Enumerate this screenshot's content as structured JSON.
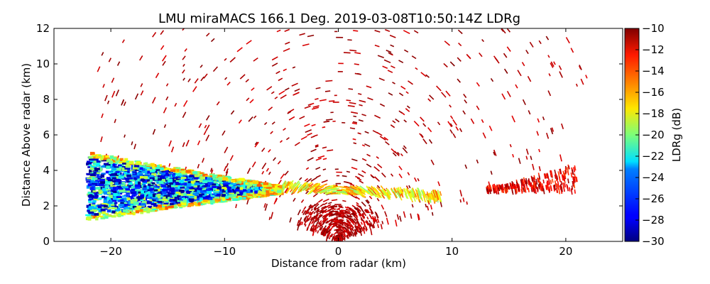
{
  "chart_data": {
    "type": "heatmap",
    "title": "LMU miraMACS 166.1 Deg. 2019-03-08T10:50:14Z  LDRg",
    "xlabel": "Distance from radar (km)",
    "ylabel": "Distance Above radar  (km)",
    "xlim": [
      -25,
      25
    ],
    "ylim": [
      0,
      12
    ],
    "xticks": [
      "−20",
      "−10",
      "0",
      "10",
      "20"
    ],
    "yticks": [
      "0",
      "2",
      "4",
      "6",
      "8",
      "10",
      "12"
    ],
    "colorbar": {
      "label": "LDRg (dB)",
      "range": [
        -30,
        -10
      ],
      "ticks": [
        "−10",
        "−12",
        "−14",
        "−16",
        "−18",
        "−20",
        "−22",
        "−24",
        "−26",
        "−28",
        "−30"
      ],
      "colormap": "jet"
    },
    "features": [
      {
        "name": "low-LDR layer",
        "x_range": [
          -22,
          -5
        ],
        "height_range": [
          1.2,
          5.0
        ],
        "ldr_db": [
          -30,
          -22
        ]
      },
      {
        "name": "melting-layer band",
        "x_range": [
          -5,
          9
        ],
        "height_range": [
          2.4,
          3.6
        ],
        "ldr_db": [
          -20,
          -14
        ]
      },
      {
        "name": "right echo",
        "x_range": [
          13,
          21
        ],
        "height_range": [
          2.8,
          4.8
        ],
        "ldr_db": [
          -14,
          -10
        ]
      },
      {
        "name": "near-radar clutter",
        "x_range": [
          -4,
          4
        ],
        "height_range": [
          0,
          2
        ],
        "ldr_db": [
          -12,
          -10
        ]
      },
      {
        "name": "scattered noise",
        "x_range": [
          -22,
          22
        ],
        "height_range": [
          0,
          12
        ],
        "ldr_db": [
          -12,
          -10
        ]
      }
    ]
  }
}
